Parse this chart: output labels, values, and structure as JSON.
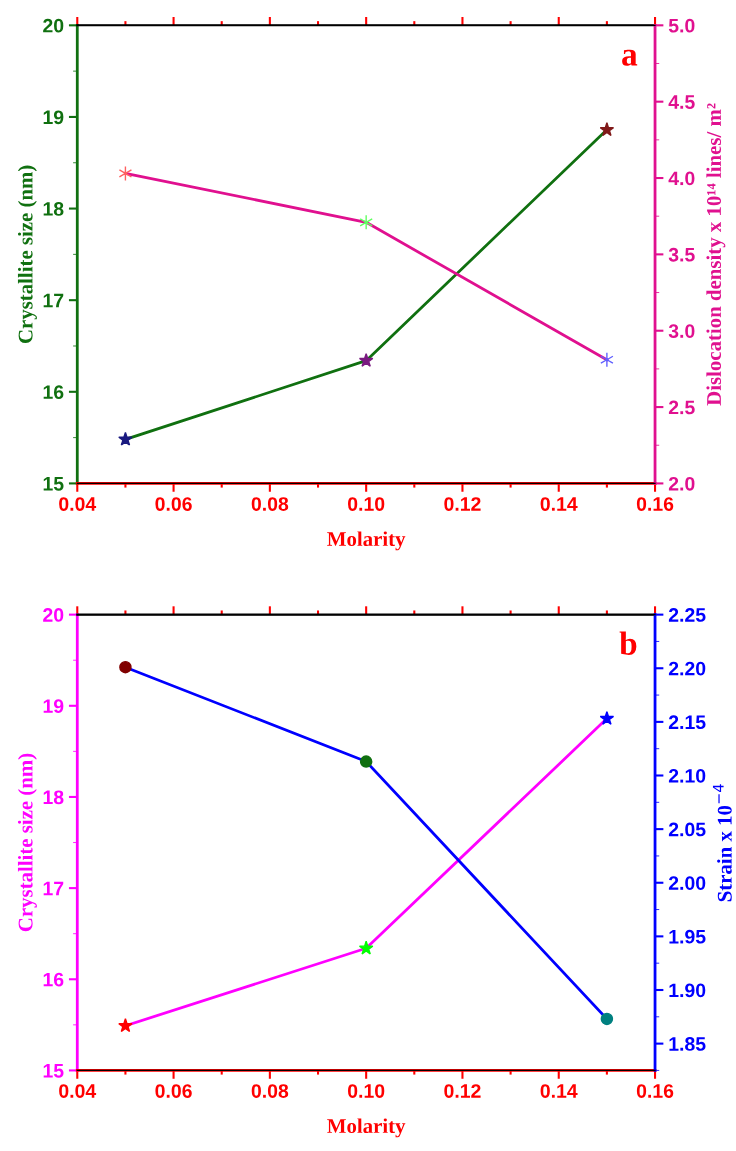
{
  "chart_data": [
    {
      "type": "line",
      "xlabel": "Molarity",
      "ylabel": "Crystallite size (nm)",
      "y2label": "Dislocation density x 10¹⁴ lines/ m²",
      "annotations": [
        "a"
      ],
      "x": [
        0.05,
        0.1,
        0.15
      ],
      "xlim": [
        0.04,
        0.16
      ],
      "xticks": [
        {
          "value": 0.04,
          "label": "0.04"
        },
        {
          "value": 0.06,
          "label": "0.06"
        },
        {
          "value": 0.08,
          "label": "0.08"
        },
        {
          "value": 0.1,
          "label": "0.10"
        },
        {
          "value": 0.12,
          "label": "0.12"
        },
        {
          "value": 0.14,
          "label": "0.14"
        },
        {
          "value": 0.16,
          "label": "0.16"
        }
      ],
      "ylim": [
        15,
        20
      ],
      "yticks": [
        15,
        16,
        17,
        18,
        19,
        20
      ],
      "y2lim": [
        2.0,
        5.0
      ],
      "y2ticks": [
        {
          "value": 2.0,
          "label": "2.0"
        },
        {
          "value": 2.5,
          "label": "2.5"
        },
        {
          "value": 3.0,
          "label": "3.0"
        },
        {
          "value": 3.5,
          "label": "3.5"
        },
        {
          "value": 4.0,
          "label": "4.0"
        },
        {
          "value": 4.5,
          "label": "4.5"
        },
        {
          "value": 5.0,
          "label": "5.0"
        }
      ],
      "grid": false,
      "line_style": "solid",
      "series": [
        {
          "color": "#107010",
          "marker": "star",
          "colors": [
            "#1a1a80",
            "#7a1a80",
            "#801a1a"
          ],
          "values": [
            15.48,
            16.34,
            18.86
          ]
        },
        {
          "color": "#e0108f",
          "marker": "cross",
          "axis": "y2",
          "colors": [
            "#ff6060",
            "#60ff60",
            "#6060ff"
          ],
          "values": [
            4.03,
            3.71,
            2.81
          ]
        }
      ]
    },
    {
      "type": "line",
      "xlabel": "Molarity",
      "ylabel": "Crystallite size (nm)",
      "y2label": "Strain x 10$^{−4}$",
      "annotations": [
        "b"
      ],
      "x": [
        0.05,
        0.1,
        0.15
      ],
      "xlim": [
        0.04,
        0.16
      ],
      "xticks": [
        {
          "value": 0.04,
          "label": "0.04"
        },
        {
          "value": 0.06,
          "label": "0.06"
        },
        {
          "value": 0.08,
          "label": "0.08"
        },
        {
          "value": 0.1,
          "label": "0.10"
        },
        {
          "value": 0.12,
          "label": "0.12"
        },
        {
          "value": 0.14,
          "label": "0.14"
        },
        {
          "value": 0.16,
          "label": "0.16"
        }
      ],
      "ylim": [
        15,
        20
      ],
      "yticks": [
        15,
        16,
        17,
        18,
        19,
        20
      ],
      "y2lim": [
        1.825,
        2.25
      ],
      "y2ticks": [
        {
          "value": 1.85,
          "label": "1.85"
        },
        {
          "value": 1.9,
          "label": "1.90"
        },
        {
          "value": 1.95,
          "label": "1.95"
        },
        {
          "value": 2.0,
          "label": "2.00"
        },
        {
          "value": 2.05,
          "label": "2.05"
        },
        {
          "value": 2.1,
          "label": "2.10"
        },
        {
          "value": 2.15,
          "label": "2.15"
        },
        {
          "value": 2.2,
          "label": "2.20"
        },
        {
          "value": 2.25,
          "label": "2.25"
        }
      ],
      "grid": false,
      "line_style": "solid",
      "series": [
        {
          "color": "#ff00ff",
          "marker": "star",
          "colors": [
            "#ff0000",
            "#00ff00",
            "#0000ff"
          ],
          "values": [
            15.49,
            16.34,
            18.86
          ]
        },
        {
          "color": "#0000ff",
          "marker": "circle",
          "axis": "y2",
          "colors": [
            "#800000",
            "#107010",
            "#008080"
          ],
          "values": [
            2.201,
            2.113,
            1.873
          ]
        }
      ]
    }
  ]
}
